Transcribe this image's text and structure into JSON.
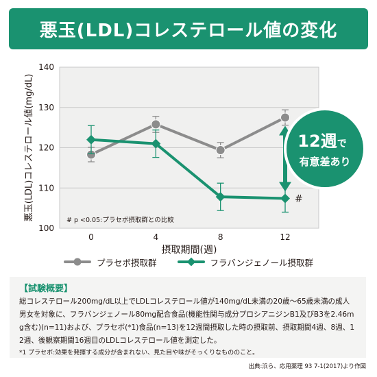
{
  "banner": {
    "title": "悪玉(LDL)コレステロール値の変化"
  },
  "chart_data": {
    "type": "line",
    "title": "",
    "xlabel": "摂取期間(週)",
    "ylabel": "悪玉(LDL)コレステロール値(mg/dL)",
    "x": [
      0,
      4,
      8,
      12
    ],
    "xlim": [
      0,
      12
    ],
    "ylim": [
      100,
      140
    ],
    "yticks": [
      100,
      110,
      120,
      130,
      140
    ],
    "grid": true,
    "legend_position": "bottom",
    "series": [
      {
        "name": "プラセボ摂取群",
        "color": "#8c8c8c",
        "marker": "circle",
        "values": [
          118.3,
          125.8,
          119.4,
          127.5
        ],
        "error": [
          1.8,
          2.0,
          1.9,
          1.9
        ]
      },
      {
        "name": "フラバンジェノール摂取群",
        "color": "#1a9270",
        "marker": "diamond",
        "values": [
          122.0,
          121.0,
          107.8,
          107.4
        ],
        "error": [
          3.5,
          3.4,
          3.4,
          3.4
        ]
      }
    ],
    "annotations": {
      "stat_note": "# p <0.05:プラセボ摂取群との比較",
      "significance_mark": "#",
      "callout_line1": "12週",
      "callout_line1_suffix": "で",
      "callout_line2": "有意差あり"
    }
  },
  "summary": {
    "heading": "【試験概要】",
    "body": "総コレステロール200mg/dL以上でLDLコレステロール値が140mg/dL未満の20歳〜65歳未満の成人男女を対象に、フラバンジェノール80mg配合食品(機能性関与成分プロシアニジンB1及びB3を2.46mg含む)(n=11)および、プラセボ(*1)食品(n=13)を12週間摂取した時の摂取前、摂取期間4週、8週、12週、後観察期間16週目のLDLコレステロール値を測定した。",
    "note": "*1 プラセボ:効果を発揮する成分が含まれない、見た目や味がそっくりなもののこと。"
  },
  "source": "出典:浜ら、応用薬理 93 7-1(2017)より作図"
}
